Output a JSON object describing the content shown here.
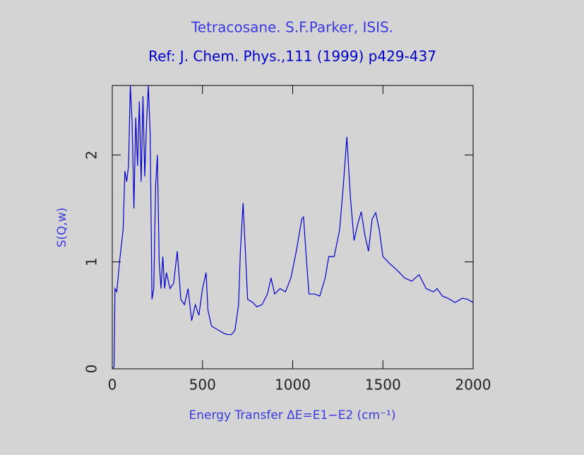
{
  "chart_data": {
    "type": "line",
    "title": "Tetracosane. S.F.Parker, ISIS.",
    "subtitle": "Ref: J. Chem. Phys.,111 (1999) p429-437",
    "x_label": "Energy Transfer ΔE=E1−E2 (cm⁻¹)",
    "y_label": "S(Q,w)",
    "xlim": [
      0,
      2000
    ],
    "ylim": [
      0,
      2.65
    ],
    "xticks": [
      0,
      500,
      1000,
      1500,
      2000
    ],
    "yticks": [
      0,
      1,
      2
    ],
    "series": [
      {
        "color": "#0000d0",
        "x": [
          0,
          10,
          15,
          25,
          40,
          60,
          70,
          80,
          90,
          100,
          110,
          120,
          130,
          140,
          150,
          160,
          170,
          180,
          190,
          200,
          210,
          220,
          230,
          240,
          250,
          260,
          270,
          280,
          290,
          300,
          320,
          340,
          360,
          380,
          400,
          420,
          440,
          460,
          480,
          500,
          520,
          530,
          550,
          580,
          600,
          620,
          640,
          660,
          680,
          700,
          710,
          725,
          735,
          750,
          780,
          800,
          830,
          860,
          880,
          900,
          930,
          960,
          990,
          1020,
          1050,
          1060,
          1075,
          1090,
          1120,
          1150,
          1180,
          1200,
          1230,
          1260,
          1280,
          1300,
          1320,
          1340,
          1360,
          1380,
          1400,
          1420,
          1440,
          1460,
          1480,
          1500,
          1540,
          1580,
          1620,
          1660,
          1700,
          1740,
          1780,
          1800,
          1830,
          1860,
          1900,
          1940,
          1970,
          2000
        ],
        "values": [
          0,
          0.02,
          0.75,
          0.72,
          1.0,
          1.3,
          1.85,
          1.75,
          1.9,
          2.65,
          2.3,
          1.5,
          2.35,
          1.9,
          2.5,
          1.75,
          2.55,
          1.8,
          2.3,
          2.65,
          2.2,
          0.65,
          0.75,
          1.7,
          2.0,
          1.0,
          0.75,
          1.05,
          0.75,
          0.9,
          0.75,
          0.8,
          1.1,
          0.65,
          0.6,
          0.75,
          0.45,
          0.6,
          0.5,
          0.75,
          0.9,
          0.55,
          0.4,
          0.37,
          0.35,
          0.33,
          0.32,
          0.32,
          0.36,
          0.6,
          1.1,
          1.55,
          1.2,
          0.65,
          0.62,
          0.58,
          0.6,
          0.7,
          0.85,
          0.7,
          0.75,
          0.72,
          0.85,
          1.1,
          1.4,
          1.42,
          1.05,
          0.7,
          0.7,
          0.68,
          0.85,
          1.05,
          1.05,
          1.3,
          1.7,
          2.17,
          1.6,
          1.2,
          1.35,
          1.47,
          1.25,
          1.1,
          1.4,
          1.46,
          1.3,
          1.05,
          0.98,
          0.92,
          0.85,
          0.82,
          0.88,
          0.75,
          0.72,
          0.75,
          0.68,
          0.66,
          0.62,
          0.66,
          0.65,
          0.62
        ]
      }
    ]
  }
}
